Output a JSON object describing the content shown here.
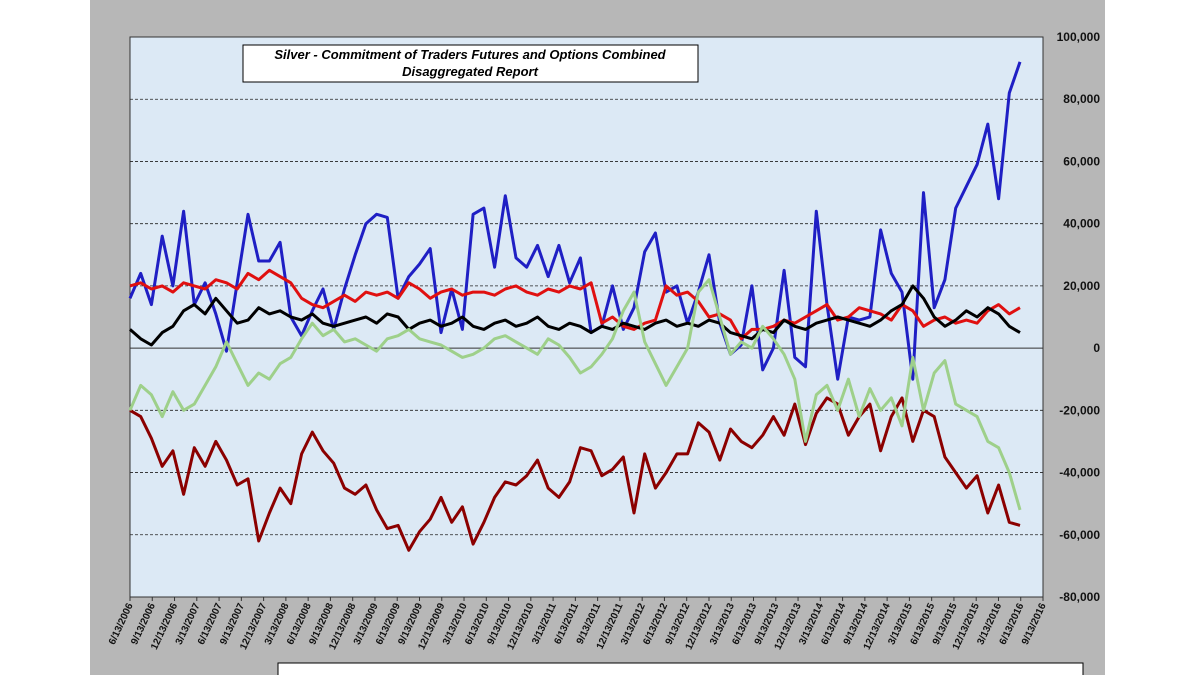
{
  "chart_data": {
    "type": "line",
    "title_line1": "Silver - Commitment of Traders Futures and Options Combined",
    "title_line2": "Disaggregated  Report",
    "xlabel": "",
    "ylabel": "",
    "ylim": [
      -80000,
      100000
    ],
    "y_ticks": [
      "100,000",
      "80,000",
      "60,000",
      "40,000",
      "20,000",
      "0",
      "-20,000",
      "-40,000",
      "-60,000",
      "-80,000"
    ],
    "x_ticks": [
      "6/13/2006",
      "9/13/2006",
      "12/13/2006",
      "3/13/2007",
      "6/13/2007",
      "9/13/2007",
      "12/13/2007",
      "3/13/2008",
      "6/13/2008",
      "9/13/2008",
      "12/13/2008",
      "3/13/2009",
      "6/13/2009",
      "9/13/2009",
      "12/13/2009",
      "3/13/2010",
      "6/13/2010",
      "9/13/2010",
      "12/13/2010",
      "3/13/2011",
      "6/13/2011",
      "9/13/2011",
      "12/13/2011",
      "3/13/2012",
      "6/13/2012",
      "9/13/2012",
      "12/13/2012",
      "3/13/2013",
      "6/13/2013",
      "9/13/2013",
      "12/13/2013",
      "3/13/2014",
      "6/13/2014",
      "9/13/2014",
      "12/13/2014",
      "3/13/2015",
      "6/13/2015",
      "9/13/2015",
      "12/13/2015",
      "3/13/2016",
      "6/13/2016",
      "9/13/2016"
    ],
    "grid": true,
    "legend": "none",
    "series": [
      {
        "color": "#1f1fc4",
        "values": [
          16000,
          24000,
          14000,
          36000,
          20000,
          44000,
          14000,
          21000,
          11000,
          -1000,
          21000,
          43000,
          28000,
          28000,
          34000,
          10000,
          4000,
          12000,
          19000,
          6000,
          19000,
          30000,
          40000,
          43000,
          42000,
          16000,
          23000,
          27000,
          32000,
          5000,
          19000,
          6000,
          43000,
          45000,
          26000,
          49000,
          29000,
          26000,
          33000,
          23000,
          33000,
          21000,
          29000,
          5000,
          7000,
          20000,
          6000,
          13000,
          31000,
          37000,
          18000,
          20000,
          8000,
          18000,
          30000,
          8000,
          -2000,
          1000,
          20000,
          -7000,
          0,
          25000,
          -3000,
          -6000,
          44000,
          14000,
          -10000,
          10000,
          9000,
          10000,
          38000,
          24000,
          18000,
          -10000,
          50000,
          13000,
          22000,
          45000,
          52000,
          59000,
          72000,
          48000,
          82000,
          92000
        ]
      },
      {
        "color": "#8b0000",
        "values": [
          -20000,
          -22000,
          -29000,
          -38000,
          -33000,
          -47000,
          -32000,
          -38000,
          -30000,
          -36000,
          -44000,
          -42000,
          -62000,
          -53000,
          -45000,
          -50000,
          -34000,
          -27000,
          -33000,
          -37000,
          -45000,
          -47000,
          -44000,
          -52000,
          -58000,
          -57000,
          -65000,
          -59000,
          -55000,
          -48000,
          -56000,
          -51000,
          -63000,
          -56000,
          -48000,
          -43000,
          -44000,
          -41000,
          -36000,
          -45000,
          -48000,
          -43000,
          -32000,
          -33000,
          -41000,
          -39000,
          -35000,
          -53000,
          -34000,
          -45000,
          -40000,
          -34000,
          -34000,
          -24000,
          -27000,
          -36000,
          -26000,
          -30000,
          -32000,
          -28000,
          -22000,
          -28000,
          -18000,
          -31000,
          -21000,
          -16000,
          -18000,
          -28000,
          -22000,
          -18000,
          -33000,
          -22000,
          -16000,
          -30000,
          -20000,
          -22000,
          -35000,
          -40000,
          -45000,
          -41000,
          -53000,
          -44000,
          -56000,
          -57000
        ]
      },
      {
        "color": "#e01010",
        "values": [
          20000,
          21000,
          19000,
          20000,
          18000,
          21000,
          20000,
          19000,
          22000,
          21000,
          19000,
          24000,
          22000,
          25000,
          23000,
          21000,
          16000,
          14000,
          13000,
          15000,
          17000,
          15000,
          18000,
          17000,
          18000,
          16000,
          21000,
          19000,
          16000,
          18000,
          19000,
          17000,
          18000,
          18000,
          17000,
          19000,
          20000,
          18000,
          17000,
          19000,
          18000,
          20000,
          19000,
          21000,
          8000,
          10000,
          7000,
          6000,
          8000,
          9000,
          20000,
          17000,
          18000,
          15000,
          10000,
          11000,
          9000,
          3000,
          6000,
          6000,
          7000,
          9000,
          8000,
          10000,
          12000,
          14000,
          9000,
          10000,
          13000,
          12000,
          11000,
          9000,
          14000,
          12000,
          7000,
          9000,
          10000,
          8000,
          9000,
          8000,
          12000,
          14000,
          11000,
          13000
        ]
      },
      {
        "color": "#000000",
        "values": [
          6000,
          3000,
          1000,
          5000,
          7000,
          12000,
          14000,
          11000,
          16000,
          12000,
          8000,
          9000,
          13000,
          11000,
          12000,
          10000,
          9000,
          11000,
          8000,
          7000,
          8000,
          9000,
          10000,
          8000,
          11000,
          10000,
          6000,
          8000,
          9000,
          7000,
          8000,
          10000,
          7000,
          6000,
          8000,
          9000,
          7000,
          8000,
          10000,
          7000,
          6000,
          8000,
          7000,
          5000,
          7000,
          6000,
          8000,
          7000,
          6000,
          8000,
          9000,
          7000,
          8000,
          7000,
          9000,
          8000,
          5000,
          4000,
          3000,
          6000,
          5000,
          9000,
          7000,
          6000,
          8000,
          9000,
          10000,
          9000,
          8000,
          7000,
          9000,
          12000,
          14000,
          20000,
          16000,
          10000,
          7000,
          9000,
          12000,
          10000,
          13000,
          11000,
          7000,
          5000
        ]
      },
      {
        "color": "#9ed08a",
        "values": [
          -20000,
          -12000,
          -15000,
          -22000,
          -14000,
          -20000,
          -18000,
          -12000,
          -6000,
          2000,
          -5000,
          -12000,
          -8000,
          -10000,
          -5000,
          -3000,
          3000,
          8000,
          4000,
          6000,
          2000,
          3000,
          1000,
          -1000,
          3000,
          4000,
          6000,
          3000,
          2000,
          1000,
          -1000,
          -3000,
          -2000,
          0,
          3000,
          4000,
          2000,
          0,
          -2000,
          3000,
          1000,
          -3000,
          -8000,
          -6000,
          -2000,
          3000,
          12000,
          18000,
          2000,
          -5000,
          -12000,
          -6000,
          0,
          18000,
          22000,
          10000,
          -2000,
          2000,
          0,
          7000,
          3000,
          -2000,
          -10000,
          -30000,
          -15000,
          -12000,
          -20000,
          -10000,
          -22000,
          -13000,
          -20000,
          -16000,
          -25000,
          -3000,
          -20000,
          -8000,
          -4000,
          -18000,
          -20000,
          -22000,
          -30000,
          -32000,
          -40000,
          -52000
        ]
      }
    ]
  }
}
